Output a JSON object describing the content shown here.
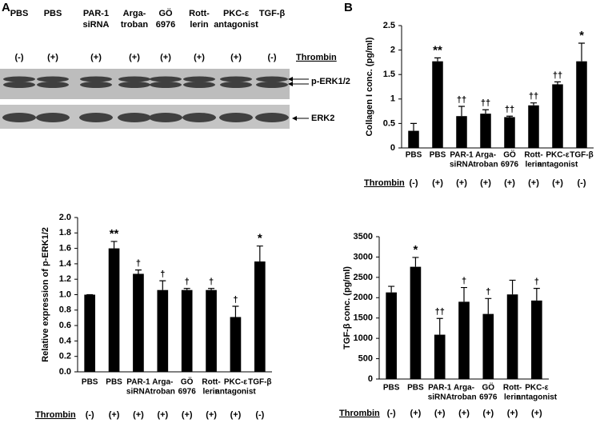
{
  "panels": [
    "A",
    "B"
  ],
  "blot": {
    "lanes": [
      [
        "PBS"
      ],
      [
        "PBS"
      ],
      [
        "PAR-1",
        "siRNA"
      ],
      [
        "Arga-",
        "troban"
      ],
      [
        "GÖ",
        "6976"
      ],
      [
        "Rott-",
        "lerin"
      ],
      [
        "PKC-ε",
        "antagonist"
      ],
      [
        "TGF-β"
      ]
    ],
    "thrombin": [
      "(-)",
      "(+)",
      "(+)",
      "(+)",
      "(+)",
      "(+)",
      "(+)",
      "(-)"
    ],
    "thrombin_label": "Thrombin",
    "bands": [
      "p-ERK1/2",
      "ERK2"
    ]
  },
  "chart_data": [
    {
      "type": "bar",
      "ylabel": "Collagen I conc. (pg/ml)",
      "color": "#000000",
      "categories": [
        [
          "PBS"
        ],
        [
          "PBS"
        ],
        [
          "PAR-1",
          "siRNA"
        ],
        [
          "Arga-",
          "troban"
        ],
        [
          "GÖ",
          "6976"
        ],
        [
          "Rott-",
          "lerin"
        ],
        [
          "PKC-ε",
          "antagonist"
        ],
        [
          "TGF-β"
        ]
      ],
      "values": [
        0.35,
        1.77,
        0.65,
        0.7,
        0.63,
        0.87,
        1.3,
        1.77
      ],
      "errors": [
        0.15,
        0.07,
        0.2,
        0.08,
        0.02,
        0.05,
        0.05,
        0.37
      ],
      "annotations": [
        null,
        "**",
        "††",
        "††",
        "††",
        "††",
        "††",
        "*"
      ],
      "thrombin": [
        "(-)",
        "(+)",
        "(+)",
        "(+)",
        "(+)",
        "(+)",
        "(+)",
        "(-)"
      ],
      "thrombin_label": "Thrombin",
      "ylim": [
        0,
        2.5
      ],
      "yticks": [
        0,
        0.5,
        1,
        1.5,
        2,
        2.5
      ]
    },
    {
      "type": "bar",
      "ylabel": "Relative expression of p-ERK1/2",
      "color": "#000000",
      "categories": [
        [
          "PBS"
        ],
        [
          "PBS"
        ],
        [
          "PAR-1",
          "siRNA"
        ],
        [
          "Arga-",
          "troban"
        ],
        [
          "GÖ",
          "6976"
        ],
        [
          "Rott-",
          "lerin"
        ],
        [
          "PKC-ε",
          "antagonist"
        ],
        [
          "TGF-β"
        ]
      ],
      "values": [
        1.0,
        1.6,
        1.27,
        1.06,
        1.06,
        1.06,
        0.71,
        1.43
      ],
      "errors": [
        0,
        0.09,
        0.05,
        0.12,
        0.02,
        0.02,
        0.14,
        0.2
      ],
      "annotations": [
        null,
        "**",
        "†",
        "†",
        "†",
        "†",
        "†",
        "*"
      ],
      "thrombin": [
        "(-)",
        "(+)",
        "(+)",
        "(+)",
        "(+)",
        "(+)",
        "(+)",
        "(-)"
      ],
      "thrombin_label": "Thrombin",
      "ylim": [
        0,
        2.0
      ],
      "yticks": [
        {
          "value": 0,
          "label": "0.0"
        },
        0.2,
        0.4,
        0.6,
        0.8,
        {
          "value": 1,
          "label": "1.0"
        },
        1.2,
        1.4,
        1.6,
        1.8,
        {
          "value": 2,
          "label": "2.0"
        }
      ]
    },
    {
      "type": "bar",
      "ylabel": "TGF-β conc. (pg/ml)",
      "color": "#000000",
      "categories": [
        [
          "PBS"
        ],
        [
          "PBS"
        ],
        [
          "PAR-1",
          "siRNA"
        ],
        [
          "Arga-",
          "troban"
        ],
        [
          "GÖ",
          "6976"
        ],
        [
          "Rott-",
          "lerin"
        ],
        [
          "PKC-ε",
          "antagonist"
        ]
      ],
      "values": [
        2130,
        2760,
        1090,
        1900,
        1600,
        2080,
        1930
      ],
      "errors": [
        150,
        230,
        400,
        350,
        380,
        350,
        300
      ],
      "annotations": [
        null,
        "*",
        "††",
        "†",
        "†",
        null,
        "†"
      ],
      "thrombin": [
        "(-)",
        "(+)",
        "(+)",
        "(+)",
        "(+)",
        "(+)",
        "(+)"
      ],
      "thrombin_label": "Thrombin",
      "ylim": [
        0,
        3500
      ],
      "yticks": [
        0,
        500,
        1000,
        1500,
        2000,
        2500,
        3000,
        3500
      ]
    }
  ]
}
